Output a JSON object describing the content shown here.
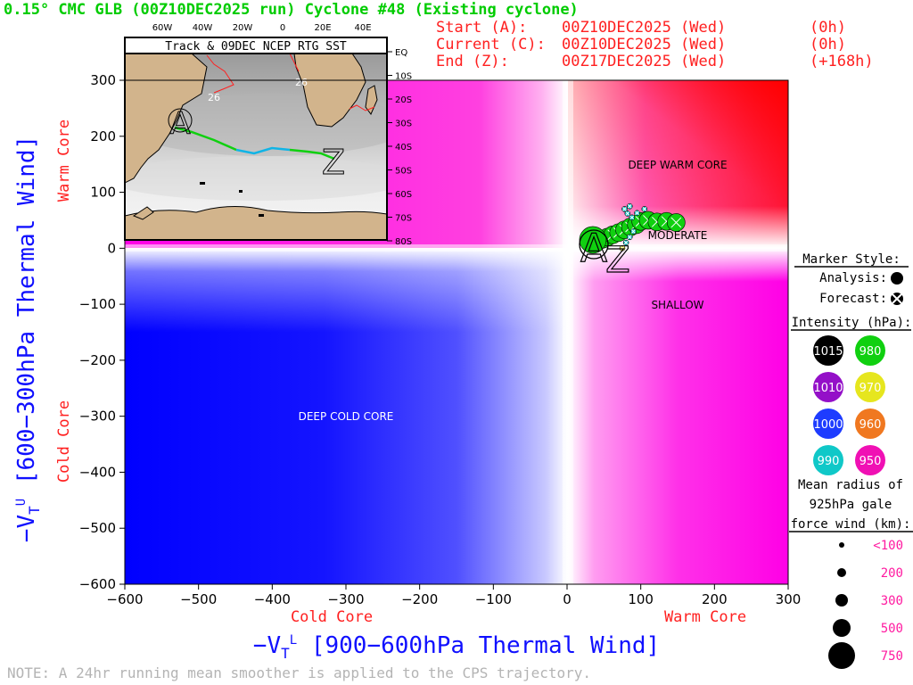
{
  "header": {
    "title": "0.15° CMC GLB (00Z10DEC2025 run) Cyclone #48 (Existing cyclone)",
    "start_label": "Start (A):",
    "start_value": "00Z10DEC2025 (Wed)",
    "start_offset": "(0h)",
    "current_label": "Current (C):",
    "current_value": "00Z10DEC2025 (Wed)",
    "current_offset": "(0h)",
    "end_label": "End (Z):",
    "end_value": "00Z17DEC2025 (Wed)",
    "end_offset": "(+168h)"
  },
  "inset": {
    "title": "Track & 09DEC NCEP RTG SST",
    "lon_labels": [
      "60W",
      "40W",
      "20W",
      "0",
      "20E",
      "40E"
    ],
    "lat_labels": [
      "EQ",
      "10S",
      "20S",
      "30S",
      "40S",
      "50S",
      "60S",
      "70S",
      "80S"
    ],
    "sst_labels": [
      "26",
      "26"
    ],
    "start_marker": "A",
    "end_marker": "Z"
  },
  "chart_data": {
    "type": "scatter",
    "xlabel": "−V_T^L [900−600hPa Thermal Wind]",
    "ylabel": "−V_T^U [600−300hPa Thermal Wind]",
    "xlim": [
      -600,
      300
    ],
    "ylim": [
      -600,
      300
    ],
    "x_ticks": [
      "−600",
      "−500",
      "−400",
      "−300",
      "−200",
      "−100",
      "0",
      "100",
      "200",
      "300"
    ],
    "y_ticks": [
      "300",
      "200",
      "100",
      "0",
      "−100",
      "−200",
      "−300",
      "−400",
      "−500",
      "−600"
    ],
    "x_axis_side_labels": {
      "left": "Cold Core",
      "right": "Warm Core"
    },
    "y_axis_side_labels": {
      "top": "Warm Core",
      "bottom": "Cold Core"
    },
    "region_labels": [
      {
        "text": "DEEP WARM CORE",
        "x": 150,
        "y": 150
      },
      {
        "text": "MODERATE",
        "x": 120,
        "y": 22
      },
      {
        "text": "SHALLOW",
        "x": 150,
        "y": -100
      },
      {
        "text": "DEEP COLD CORE",
        "x": -300,
        "y": -300
      }
    ],
    "start_marker": {
      "label": "A",
      "x": 35,
      "y": 5
    },
    "end_marker": {
      "label": "Z",
      "x": 70,
      "y": -30
    },
    "analysis_points": [
      {
        "x": 35,
        "y": 15,
        "intensity_hpa": 985,
        "size_class": "750"
      }
    ],
    "forecast_points": [
      {
        "x": 40,
        "y": 12,
        "intensity_hpa": 985,
        "size_class": "500"
      },
      {
        "x": 48,
        "y": 16,
        "intensity_hpa": 983,
        "size_class": "500"
      },
      {
        "x": 55,
        "y": 20,
        "intensity_hpa": 982,
        "size_class": "500"
      },
      {
        "x": 62,
        "y": 24,
        "intensity_hpa": 981,
        "size_class": "500"
      },
      {
        "x": 70,
        "y": 28,
        "intensity_hpa": 980,
        "size_class": "500"
      },
      {
        "x": 78,
        "y": 33,
        "intensity_hpa": 980,
        "size_class": "500"
      },
      {
        "x": 86,
        "y": 38,
        "intensity_hpa": 980,
        "size_class": "500"
      },
      {
        "x": 94,
        "y": 42,
        "intensity_hpa": 980,
        "size_class": "500"
      },
      {
        "x": 100,
        "y": 48,
        "intensity_hpa": 980,
        "size_class": "500"
      },
      {
        "x": 110,
        "y": 50,
        "intensity_hpa": 980,
        "size_class": "500"
      },
      {
        "x": 122,
        "y": 47,
        "intensity_hpa": 980,
        "size_class": "500"
      },
      {
        "x": 135,
        "y": 48,
        "intensity_hpa": 980,
        "size_class": "500"
      },
      {
        "x": 148,
        "y": 46,
        "intensity_hpa": 980,
        "size_class": "500"
      },
      {
        "x": 88,
        "y": 55,
        "intensity_hpa": 990,
        "size_class": "<100"
      },
      {
        "x": 82,
        "y": 62,
        "intensity_hpa": 990,
        "size_class": "<100"
      },
      {
        "x": 78,
        "y": 70,
        "intensity_hpa": 990,
        "size_class": "<100"
      },
      {
        "x": 85,
        "y": 75,
        "intensity_hpa": 990,
        "size_class": "<100"
      },
      {
        "x": 95,
        "y": 63,
        "intensity_hpa": 990,
        "size_class": "<100"
      },
      {
        "x": 105,
        "y": 70,
        "intensity_hpa": 990,
        "size_class": "<100"
      },
      {
        "x": 90,
        "y": 30,
        "intensity_hpa": 990,
        "size_class": "<100"
      },
      {
        "x": 85,
        "y": 20,
        "intensity_hpa": 990,
        "size_class": "<100"
      },
      {
        "x": 80,
        "y": 10,
        "intensity_hpa": 990,
        "size_class": "<100"
      },
      {
        "x": 75,
        "y": 0,
        "intensity_hpa": 970,
        "size_class": "<100"
      }
    ]
  },
  "legend": {
    "marker_style_title": "Marker Style:",
    "analysis_label": "Analysis:",
    "forecast_label": "Forecast:",
    "intensity_title": "Intensity (hPa):",
    "intensity_items": [
      {
        "label": "1015",
        "color": "#000000"
      },
      {
        "label": "980",
        "color": "#10d010"
      },
      {
        "label": "1010",
        "color": "#9410c8"
      },
      {
        "label": "970",
        "color": "#e6e61e"
      },
      {
        "label": "1000",
        "color": "#1e3cff"
      },
      {
        "label": "960",
        "color": "#f07820"
      },
      {
        "label": "990",
        "color": "#10c8c8"
      },
      {
        "label": "950",
        "color": "#f010b4"
      }
    ],
    "radius_title_1": "Mean radius of",
    "radius_title_2": "925hPa gale",
    "radius_title_3": "force wind (km):",
    "radius_items": [
      {
        "label": "<100",
        "r": 3
      },
      {
        "label": "200",
        "r": 5
      },
      {
        "label": "300",
        "r": 7
      },
      {
        "label": "500",
        "r": 10
      },
      {
        "label": "750",
        "r": 15
      }
    ]
  },
  "colors": {
    "title": "#00cc00",
    "header_info": "#ff2020",
    "axis_blue": "#1010ff",
    "side_red": "#ff2020",
    "note_gray": "#b4b4b4"
  },
  "note": "NOTE:  A 24hr running mean smoother is applied to the CPS trajectory."
}
